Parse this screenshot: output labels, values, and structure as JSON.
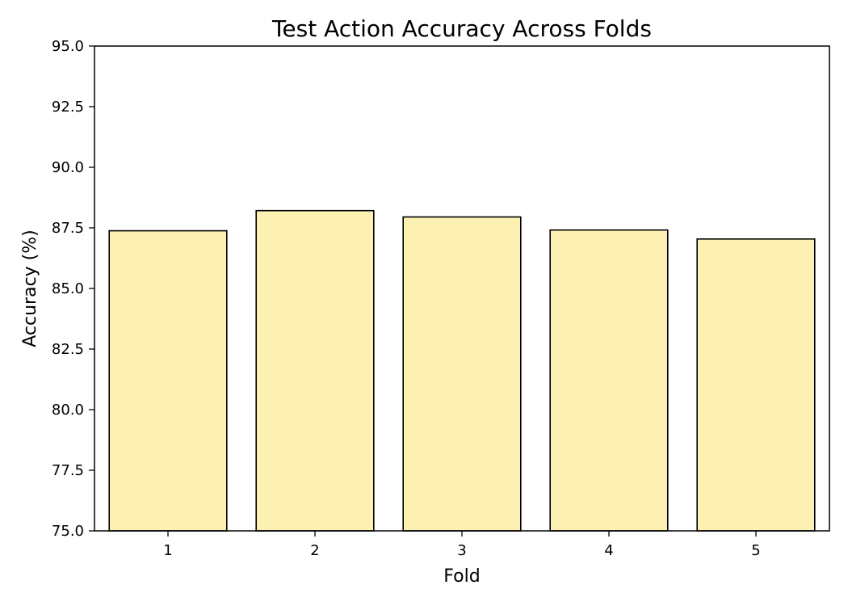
{
  "chart_data": {
    "type": "bar",
    "title": "Test Action Accuracy Across Folds",
    "xlabel": "Fold",
    "ylabel": "Accuracy (%)",
    "categories": [
      "1",
      "2",
      "3",
      "4",
      "5"
    ],
    "values": [
      87.38,
      88.21,
      87.95,
      87.41,
      87.04
    ],
    "ylim": [
      75.0,
      95.0
    ],
    "yticks": [
      "75.0",
      "77.5",
      "80.0",
      "82.5",
      "85.0",
      "87.5",
      "90.0",
      "92.5",
      "95.0"
    ],
    "grid": false,
    "legend": "none",
    "bar_color": "#fdf0b3",
    "bar_edge_color": "#000000"
  }
}
